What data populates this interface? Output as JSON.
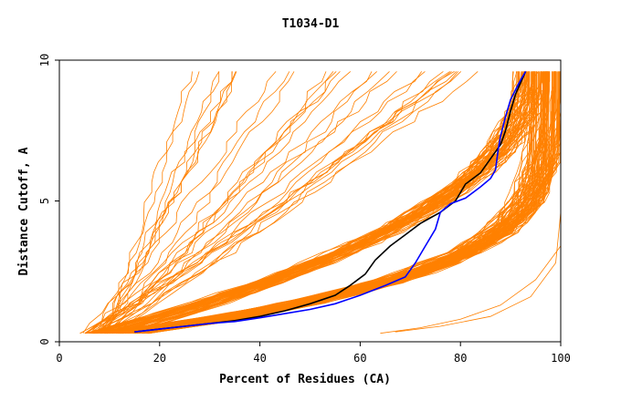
{
  "chart_data": {
    "type": "line",
    "title": "T1034-D1",
    "xlabel": "Percent of Residues (CA)",
    "ylabel": "Distance Cutoff, A",
    "xlim": [
      0,
      100
    ],
    "ylim": [
      0,
      10
    ],
    "x_ticks": [
      0,
      20,
      40,
      60,
      80,
      100
    ],
    "y_ticks": [
      0,
      5,
      10
    ],
    "grid": false,
    "legend": "none",
    "colors": {
      "models": "#ff8000",
      "black_series": "#000000",
      "blue_series": "#0000ff"
    },
    "highlight_series": [
      {
        "color": "#000000",
        "points": [
          [
            15,
            0.35
          ],
          [
            20,
            0.45
          ],
          [
            25,
            0.55
          ],
          [
            30,
            0.65
          ],
          [
            35,
            0.75
          ],
          [
            40,
            0.9
          ],
          [
            45,
            1.1
          ],
          [
            50,
            1.35
          ],
          [
            55,
            1.65
          ],
          [
            58,
            2.0
          ],
          [
            61,
            2.4
          ],
          [
            63,
            2.9
          ],
          [
            66,
            3.4
          ],
          [
            69,
            3.8
          ],
          [
            72,
            4.2
          ],
          [
            76,
            4.6
          ],
          [
            79,
            5.0
          ],
          [
            81,
            5.6
          ],
          [
            84,
            6.0
          ],
          [
            86,
            6.5
          ],
          [
            88,
            7.0
          ],
          [
            89,
            7.5
          ],
          [
            90,
            8.2
          ],
          [
            91,
            8.8
          ],
          [
            93,
            9.6
          ]
        ]
      },
      {
        "color": "#0000ff",
        "points": [
          [
            15,
            0.35
          ],
          [
            20,
            0.45
          ],
          [
            25,
            0.55
          ],
          [
            30,
            0.65
          ],
          [
            35,
            0.72
          ],
          [
            40,
            0.85
          ],
          [
            45,
            1.0
          ],
          [
            50,
            1.15
          ],
          [
            55,
            1.35
          ],
          [
            60,
            1.65
          ],
          [
            65,
            2.0
          ],
          [
            69,
            2.3
          ],
          [
            71,
            2.8
          ],
          [
            73,
            3.4
          ],
          [
            75,
            4.0
          ],
          [
            76,
            4.6
          ],
          [
            78,
            4.9
          ],
          [
            81,
            5.1
          ],
          [
            84,
            5.5
          ],
          [
            86,
            5.8
          ],
          [
            87,
            6.1
          ],
          [
            87.5,
            6.8
          ],
          [
            88,
            7.3
          ],
          [
            89,
            8.0
          ],
          [
            90,
            8.6
          ],
          [
            92,
            9.3
          ],
          [
            93,
            9.6
          ]
        ]
      }
    ],
    "model_families": {
      "steep": {
        "count": 30,
        "x_start": [
          4,
          10
        ],
        "x_end": [
          22,
          90
        ],
        "y_range": [
          0.3,
          9.6
        ]
      },
      "mid": {
        "count": 60,
        "x_start": [
          5,
          14
        ],
        "x_end": [
          90,
          97
        ],
        "y_range": [
          0.3,
          9.6
        ]
      },
      "low": {
        "count": 90,
        "x_start": [
          6,
          18
        ],
        "x_end": [
          93,
          100
        ],
        "y_range": [
          0.3,
          9.6
        ]
      },
      "outliers": [
        {
          "points": [
            [
              64,
              0.3
            ],
            [
              72,
              0.5
            ],
            [
              80,
              0.8
            ],
            [
              88,
              1.3
            ],
            [
              95,
              2.2
            ],
            [
              100,
              3.4
            ]
          ]
        },
        {
          "points": [
            [
              67,
              0.35
            ],
            [
              76,
              0.55
            ],
            [
              86,
              0.9
            ],
            [
              94,
              1.6
            ],
            [
              99,
              2.8
            ],
            [
              100,
              4.6
            ]
          ]
        }
      ]
    }
  }
}
